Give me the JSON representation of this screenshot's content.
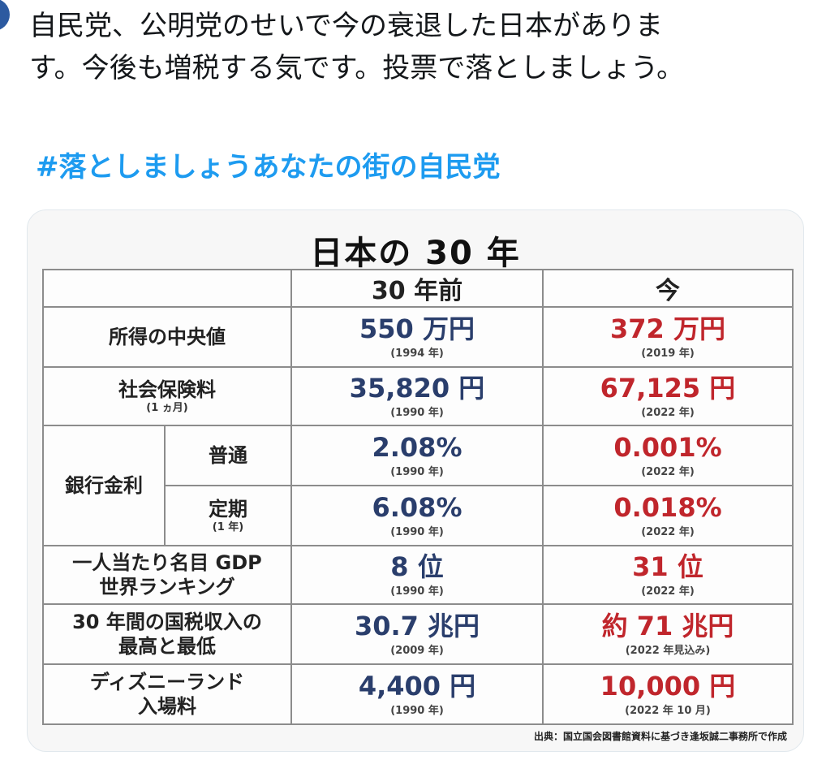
{
  "tweet": {
    "lines": [
      "自民党、公明党のせいで今の衰退した日本がありま",
      "す。今後も増税する気です。投票で落としましょう。"
    ],
    "hashtag": "#落としましょうあなたの街の自民党"
  },
  "image": {
    "title": "日本の 30 年",
    "headers": {
      "blank": "",
      "old": "30 年前",
      "now": "今"
    },
    "rows": [
      {
        "label": "所得の中央値",
        "sub": "",
        "old": "550 万円",
        "old_year": "(1994 年)",
        "now": "372 万円",
        "now_year": "(2019 年)"
      },
      {
        "label": "社会保険料",
        "sub": "(1 ヵ月)",
        "old": "35,820 円",
        "old_year": "(1990 年)",
        "now": "67,125 円",
        "now_year": "(2022 年)"
      },
      {
        "group": "銀行金利",
        "label": "普通",
        "sub": "",
        "old": "2.08%",
        "old_year": "(1990 年)",
        "now": "0.001%",
        "now_year": "(2022 年)"
      },
      {
        "label": "定期",
        "sub": "(1 年)",
        "old": "6.08%",
        "old_year": "(1990 年)",
        "now": "0.018%",
        "now_year": "(2022 年)"
      },
      {
        "label": "一人当たり名目 GDP",
        "label2": "世界ランキング",
        "old": "8 位",
        "old_year": "(1990 年)",
        "now": "31 位",
        "now_year": "(2022 年)"
      },
      {
        "label": "30 年間の国税収入の",
        "label2": "最高と最低",
        "old": "30.7 兆円",
        "old_year": "(2009 年)",
        "now": "約 71 兆円",
        "now_year": "(2022 年見込み)"
      },
      {
        "label": "ディズニーランド",
        "label2": "入場料",
        "old": "4,400 円",
        "old_year": "(1990 年)",
        "now": "10,000 円",
        "now_year": "(2022 年 10 月)"
      }
    ],
    "source": "出典：国立国会図書館資料に基づき逢坂誠二事務所で作成"
  }
}
